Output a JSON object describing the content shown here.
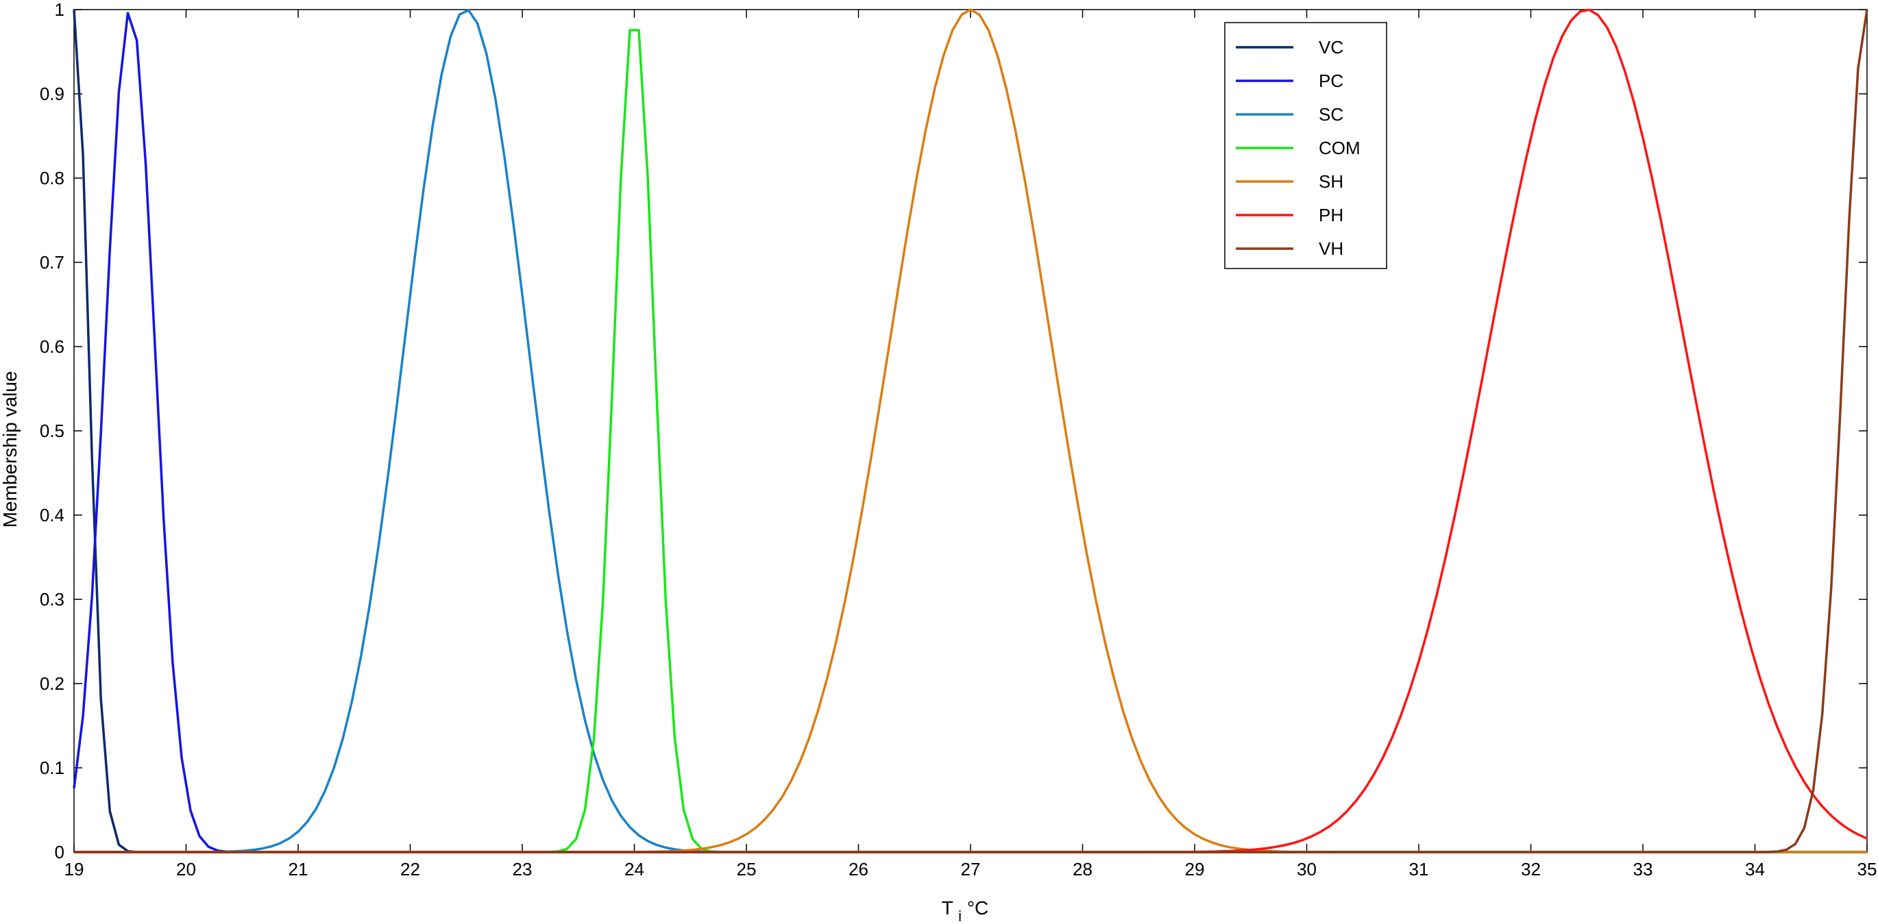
{
  "chart_data": {
    "type": "line",
    "title": "",
    "xlabel": "T",
    "xlabel_subscript": "i",
    "xlabel_suffix": "°C",
    "ylabel": "Membership value",
    "xlim": [
      19,
      35
    ],
    "ylim": [
      0,
      1
    ],
    "xticks": [
      "19",
      "20",
      "21",
      "22",
      "23",
      "24",
      "25",
      "26",
      "27",
      "28",
      "29",
      "30",
      "31",
      "32",
      "33",
      "34",
      "35"
    ],
    "yticks": [
      "0",
      "0.1",
      "0.2",
      "0.3",
      "0.4",
      "0.5",
      "0.6",
      "0.7",
      "0.8",
      "0.9",
      "1"
    ],
    "grid": false,
    "legend_position": "top-right",
    "series": [
      {
        "name": "VC",
        "color": "#0e2a6b",
        "center": 19.0,
        "sigma": 0.13
      },
      {
        "name": "PC",
        "color": "#1414e6",
        "center": 19.5,
        "sigma": 0.22
      },
      {
        "name": "SC",
        "color": "#1a82c8",
        "center": 22.5,
        "sigma": 0.55
      },
      {
        "name": "COM",
        "color": "#19e619",
        "center": 24.0,
        "sigma": 0.18
      },
      {
        "name": "SH",
        "color": "#dc7d14",
        "center": 27.0,
        "sigma": 0.72
      },
      {
        "name": "PH",
        "color": "#ff1414",
        "center": 32.5,
        "sigma": 0.87
      },
      {
        "name": "VH",
        "color": "#8b3a1a",
        "center": 35.0,
        "sigma": 0.21
      }
    ]
  }
}
